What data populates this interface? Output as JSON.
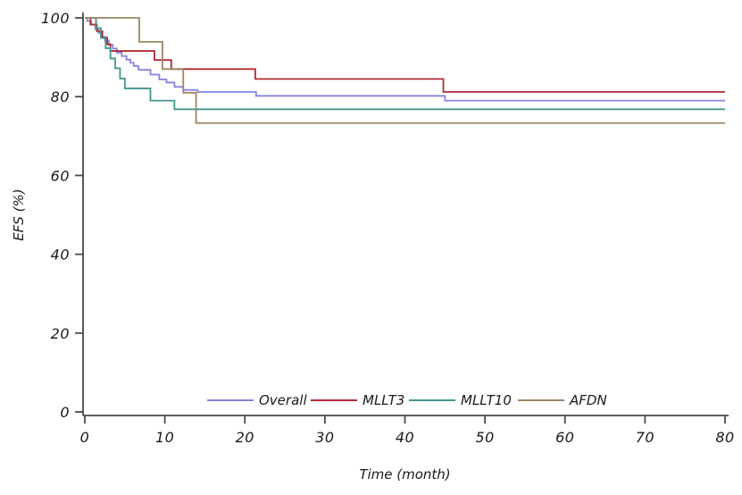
{
  "figure": {
    "background": "#ffffff",
    "axis_color": "#4a4a4a",
    "text_color": "#1a1a1a"
  },
  "chart_data": {
    "type": "line",
    "subtype": "step-survival",
    "title": "",
    "xlabel": "Time (month)",
    "ylabel": "EFS (%)",
    "xlim": [
      0,
      80
    ],
    "ylim": [
      0,
      100
    ],
    "x_ticks": [
      0,
      10,
      20,
      30,
      40,
      50,
      60,
      70,
      80
    ],
    "y_ticks": [
      0,
      20,
      40,
      60,
      80,
      100
    ],
    "grid": false,
    "legend_position": "bottom-inside",
    "series": [
      {
        "name": "Overall",
        "color": "#8585e0",
        "points": [
          [
            0,
            100
          ],
          [
            0.3,
            99.2
          ],
          [
            0.8,
            98.3
          ],
          [
            1.3,
            97.2
          ],
          [
            1.7,
            96.2
          ],
          [
            2.1,
            95.2
          ],
          [
            2.5,
            94.2
          ],
          [
            3,
            93.2
          ],
          [
            3.5,
            92.2
          ],
          [
            4,
            91.2
          ],
          [
            4.6,
            90.3
          ],
          [
            5.2,
            89.4
          ],
          [
            5.7,
            88.6
          ],
          [
            6.1,
            87.8
          ],
          [
            6.7,
            86.8
          ],
          [
            8.2,
            85.6
          ],
          [
            9.3,
            84.4
          ],
          [
            10.2,
            83.6
          ],
          [
            11.2,
            82.5
          ],
          [
            12.3,
            81.7
          ],
          [
            14.1,
            81.2
          ],
          [
            21.4,
            80.2
          ],
          [
            45,
            79
          ],
          [
            80,
            79
          ]
        ]
      },
      {
        "name": "MLLT3",
        "color": "#b12a35",
        "points": [
          [
            0,
            100
          ],
          [
            0.7,
            98.3
          ],
          [
            1.5,
            96.6
          ],
          [
            2.2,
            95
          ],
          [
            2.8,
            93.3
          ],
          [
            3.2,
            91.6
          ],
          [
            8.7,
            89.3
          ],
          [
            10.8,
            87
          ],
          [
            21.3,
            84.5
          ],
          [
            44.8,
            81.2
          ],
          [
            80,
            81.2
          ]
        ]
      },
      {
        "name": "MLLT10",
        "color": "#43968f",
        "points": [
          [
            0,
            100
          ],
          [
            1.4,
            97.4
          ],
          [
            2,
            94.9
          ],
          [
            2.6,
            92.3
          ],
          [
            3.2,
            89.7
          ],
          [
            3.8,
            87.2
          ],
          [
            4.4,
            84.6
          ],
          [
            5,
            82.1
          ],
          [
            8.2,
            79
          ],
          [
            11.2,
            76.8
          ],
          [
            80,
            76.8
          ]
        ]
      },
      {
        "name": "AFDN",
        "color": "#9f8566",
        "points": [
          [
            0,
            100
          ],
          [
            6.8,
            93.9
          ],
          [
            9.7,
            87
          ],
          [
            12.3,
            81
          ],
          [
            13.9,
            73.3
          ],
          [
            80,
            73.3
          ]
        ]
      }
    ]
  }
}
